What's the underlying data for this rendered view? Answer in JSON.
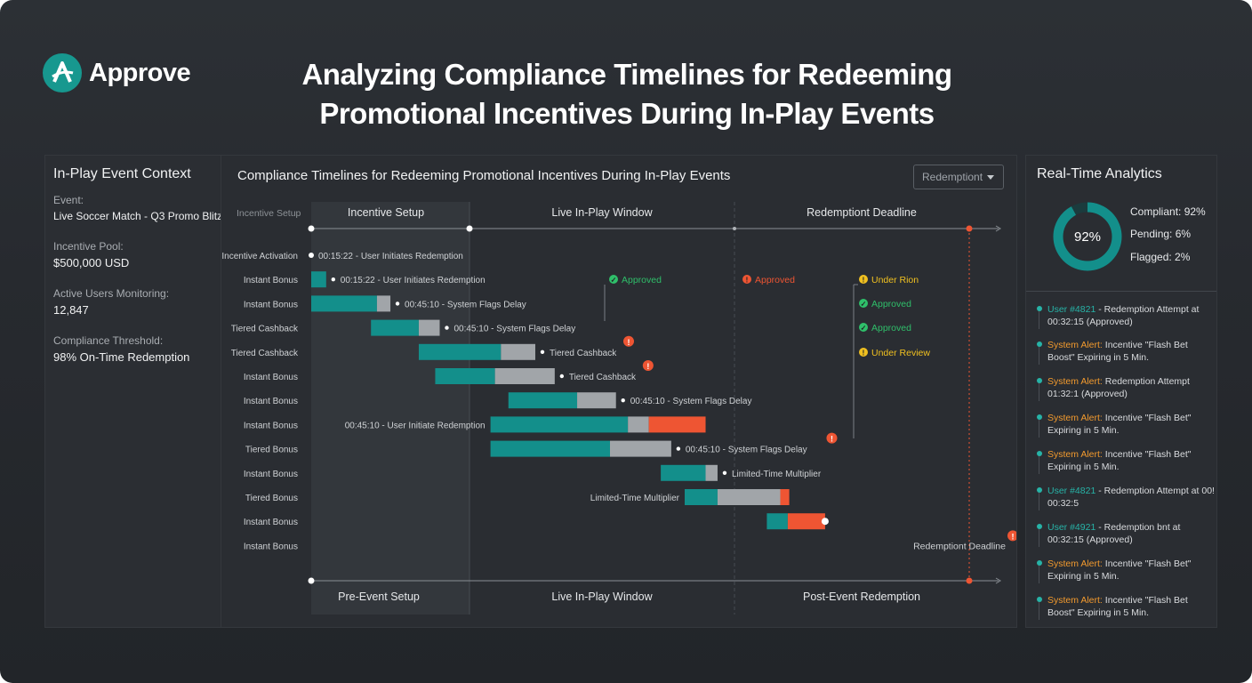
{
  "brand": {
    "name": "Approve",
    "color": "#17988f"
  },
  "page_title": {
    "line1": "Analyzing Compliance Timelines for Redeeming",
    "line2": "Promotional Incentives During In-Play Events"
  },
  "context": {
    "heading": "In-Play Event Context",
    "fields": [
      {
        "label": "Event:",
        "value": "Live Soccer Match - Q3 Promo Blitz"
      },
      {
        "label": "Incentive Pool:",
        "value": "$500,000 USD"
      },
      {
        "label": "Active Users Monitoring:",
        "value": "12,847"
      },
      {
        "label": "Compliance Threshold:",
        "value": "98% On-Time Redemption"
      }
    ]
  },
  "chart": {
    "title": "Compliance Timelines for Redeeming Promotional Incentives During In-Play Events",
    "dropdown_value": "Redemptiont",
    "top_axis_label": "Incentive Setup",
    "phases_top": [
      "Incentive Setup",
      "Live In-Play Window",
      "Redemptiont Deadline"
    ],
    "phases_bottom": [
      "Pre-Event Setup",
      "Live In-Play Window",
      "Post-Event Redemption"
    ],
    "colors": {
      "teal": "#138f8b",
      "gray": "#a1a5a9",
      "red": "#ee5533",
      "green": "#2fbf6a",
      "yellow": "#f0c020"
    }
  },
  "chart_data": {
    "type": "table",
    "rows": [
      {
        "label": "Incentive Activation",
        "segments": [],
        "annotation": "00:15:22 - User Initiates Redemption",
        "alert": false
      },
      {
        "label": "Instant Bonus",
        "segments": [
          {
            "start": 0.0,
            "end": 0.5,
            "color": "teal"
          }
        ],
        "annotation": "00:15:22 - User Initiates Redemption",
        "alert": false
      },
      {
        "label": "Instant Bonus",
        "segments": [
          {
            "start": 0.0,
            "end": 2.2,
            "color": "teal"
          },
          {
            "start": 2.2,
            "end": 2.65,
            "color": "gray"
          }
        ],
        "annotation": "00:45:10 - System Flags Delay",
        "alert": false
      },
      {
        "label": "Tiered Cashback",
        "segments": [
          {
            "start": 2.0,
            "end": 3.6,
            "color": "teal"
          },
          {
            "start": 3.6,
            "end": 4.3,
            "color": "gray"
          }
        ],
        "annotation": "00:45:10 - System Flags Delay",
        "alert": false
      },
      {
        "label": "Tiered Cashback",
        "segments": [
          {
            "start": 3.6,
            "end": 6.35,
            "color": "teal"
          },
          {
            "start": 6.35,
            "end": 7.5,
            "color": "gray"
          }
        ],
        "annotation": "Tiered Cashback",
        "alert": true
      },
      {
        "label": "Instant Bonus",
        "segments": [
          {
            "start": 4.15,
            "end": 6.15,
            "color": "teal"
          },
          {
            "start": 6.15,
            "end": 8.15,
            "color": "gray"
          }
        ],
        "annotation": "Tiered Cashback",
        "alert": true
      },
      {
        "label": "Instant Bonus",
        "segments": [
          {
            "start": 6.6,
            "end": 8.9,
            "color": "teal"
          },
          {
            "start": 8.9,
            "end": 10.2,
            "color": "gray"
          }
        ],
        "annotation": "00:45:10 - System Flags Delay",
        "alert": false
      },
      {
        "label": "Instant Bonus",
        "segments": [
          {
            "start": 6.0,
            "end": 10.6,
            "color": "teal"
          },
          {
            "start": 10.6,
            "end": 11.3,
            "color": "gray"
          },
          {
            "start": 11.3,
            "end": 13.2,
            "color": "red"
          }
        ],
        "annotation": "00:45:10 - User Initiate Redemption",
        "alert": false
      },
      {
        "label": "Tiered Bonus",
        "segments": [
          {
            "start": 6.0,
            "end": 10.0,
            "color": "teal"
          },
          {
            "start": 10.0,
            "end": 12.05,
            "color": "gray"
          }
        ],
        "annotation": "00:45:10 - System Flags Delay",
        "alert": true
      },
      {
        "label": "Instant Bonus",
        "segments": [
          {
            "start": 11.7,
            "end": 13.2,
            "color": "teal"
          },
          {
            "start": 13.2,
            "end": 13.6,
            "color": "gray"
          }
        ],
        "annotation": "Limited-Time Multiplier",
        "alert": false
      },
      {
        "label": "Tiered Bonus",
        "segments": [
          {
            "start": 12.5,
            "end": 13.6,
            "color": "teal"
          },
          {
            "start": 13.6,
            "end": 15.7,
            "color": "gray"
          },
          {
            "start": 15.7,
            "end": 16.0,
            "color": "red"
          }
        ],
        "annotation": "Limited-Time Multiplier",
        "alert": false
      },
      {
        "label": "Instant Bonus",
        "segments": [
          {
            "start": 15.25,
            "end": 15.95,
            "color": "teal"
          },
          {
            "start": 15.95,
            "end": 17.2,
            "color": "red"
          }
        ],
        "annotation": "",
        "alert": false
      },
      {
        "label": "Instant Bonus",
        "segments": [],
        "annotation": "Redemptiont Deadline",
        "alert": true
      }
    ],
    "status_markers": [
      {
        "text": "Approved",
        "kind": "green"
      },
      {
        "text": "Approved",
        "kind": "red"
      },
      {
        "text": "Under Rion",
        "kind": "yellow"
      },
      {
        "text": "Approved",
        "kind": "green"
      },
      {
        "text": "Approved",
        "kind": "green"
      },
      {
        "text": "Under Review",
        "kind": "yellow"
      }
    ]
  },
  "analytics": {
    "heading": "Real-Time Analytics",
    "donut_label": "92%",
    "compliant_pct": 92,
    "legend": [
      "Compliant: 92%",
      "Pending: 6%",
      "Flagged: 2%"
    ]
  },
  "feed": [
    {
      "source": "User #4821",
      "text": " - Redemption Attempt at 00:32:15 (Approved)",
      "kind": "teal"
    },
    {
      "source": "System Alert:",
      "text": " Incentive \"Flash Bet Boost\" Expiring in 5 Min.",
      "kind": "orange"
    },
    {
      "source": "System Alert:",
      "text": " Redemption Attempt 01:32:1 (Approved)",
      "kind": "orange"
    },
    {
      "source": "System Alert:",
      "text": " Incentive \"Flash Bet\" Expiring in 5 Min.",
      "kind": "orange"
    },
    {
      "source": "System Alert:",
      "text": " Incentive \"Flash Bet\" Expiring in 5 Min.",
      "kind": "orange"
    },
    {
      "source": "User #4821",
      "text": " - Redemption Attempt at 00! 00:32:5",
      "kind": "teal"
    },
    {
      "source": "User #4921",
      "text": " - Redemption bnt at 00:32:15 (Approved)",
      "kind": "teal"
    },
    {
      "source": "System Alert:",
      "text": " Incentive \"Flash Bet\" Expiring in 5 Min.",
      "kind": "orange"
    },
    {
      "source": "System Alert:",
      "text": " Incentive \"Flash Bet Boost\" Expiring in 5 Min.",
      "kind": "orange"
    }
  ]
}
